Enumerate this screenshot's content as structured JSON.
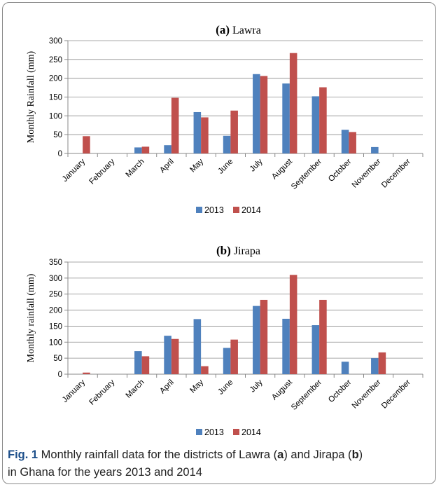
{
  "chart_data": [
    {
      "type": "bar",
      "title_letter": "(a)",
      "title_text": "Lawra",
      "ylabel": "Monthly  Rainfall (mm)",
      "xlabel": "",
      "ylim": [
        0,
        300
      ],
      "yticks": [
        0,
        50,
        100,
        150,
        200,
        250,
        300
      ],
      "categories": [
        "January",
        "February",
        "March",
        "April",
        "May",
        "June",
        "July",
        "August",
        "September",
        "October",
        "November",
        "December"
      ],
      "series": [
        {
          "name": "2013",
          "color": "#4f81bd",
          "values": [
            0,
            0,
            16,
            22,
            110,
            47,
            211,
            186,
            152,
            63,
            17,
            0
          ]
        },
        {
          "name": "2014",
          "color": "#c0504d",
          "values": [
            46,
            0,
            18,
            148,
            96,
            114,
            206,
            267,
            176,
            57,
            0,
            0
          ]
        }
      ],
      "grid": true,
      "legend": "bottom"
    },
    {
      "type": "bar",
      "title_letter": "(b)",
      "title_text": "Jirapa",
      "ylabel": "Monthly rainfall (mm)",
      "xlabel": "",
      "ylim": [
        0,
        350
      ],
      "yticks": [
        0,
        50,
        100,
        150,
        200,
        250,
        300,
        350
      ],
      "categories": [
        "January",
        "February",
        "March",
        "April",
        "May",
        "June",
        "July",
        "August",
        "September",
        "October",
        "November",
        "December"
      ],
      "series": [
        {
          "name": "2013",
          "color": "#4f81bd",
          "values": [
            0,
            0,
            72,
            120,
            172,
            82,
            213,
            173,
            153,
            39,
            50,
            0
          ]
        },
        {
          "name": "2014",
          "color": "#c0504d",
          "values": [
            5,
            0,
            56,
            110,
            25,
            108,
            232,
            310,
            232,
            0,
            68,
            0
          ]
        }
      ],
      "grid": true,
      "legend": "bottom"
    }
  ],
  "caption": {
    "label": "Fig. 1",
    "t1": "  Monthly rainfall data for the districts of Lawra (",
    "a": "a",
    "t2": ") and Jirapa (",
    "b": "b",
    "t3": ")",
    "t4": "in Ghana for the years 2013 and 2014"
  }
}
